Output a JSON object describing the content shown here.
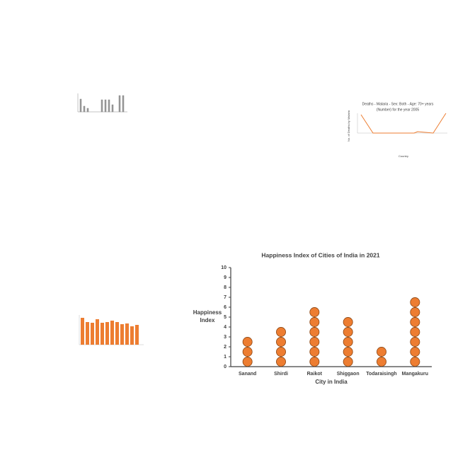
{
  "chart_data": {
    "type": "dot",
    "title": "Happiness Index of Cities of India in 2021",
    "categories": [
      "Sanand",
      "Shirdi",
      "Raikot",
      "Shiggaon",
      "Todaraisingh",
      "Mangakuru"
    ],
    "values": [
      3,
      4,
      6,
      5,
      2,
      7
    ],
    "color": "#ed7d31",
    "ylim": [
      0,
      10
    ],
    "yticks": [
      0,
      1,
      2,
      3,
      4,
      5,
      6,
      7,
      8,
      9,
      10
    ],
    "ylabel": "Happiness Index",
    "xlabel": "City in India"
  },
  "thumbnail": {
    "title_lines": [
      "Deaths - Malaria - Sex: Both - Age: 70+ years",
      "(Number) for the year 2005"
    ],
    "ylabel": "No. of Deaths by Malaria",
    "xlabel": "Country"
  }
}
